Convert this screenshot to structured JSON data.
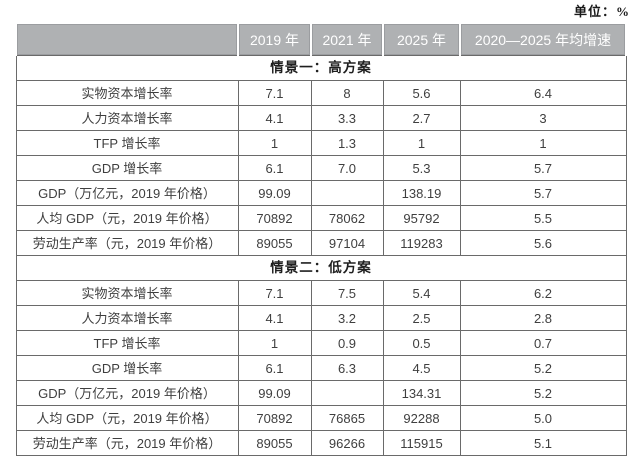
{
  "unit_note": "单位：%",
  "table": {
    "columns": [
      "",
      "2019 年",
      "2021 年",
      "2025 年",
      "2020—2025 年均增速"
    ],
    "sections": [
      {
        "title": "情景一：高方案",
        "rows": [
          {
            "label": "实物资本增长率",
            "values": [
              "7.1",
              "8",
              "5.6",
              "6.4"
            ]
          },
          {
            "label": "人力资本增长率",
            "values": [
              "4.1",
              "3.3",
              "2.7",
              "3"
            ]
          },
          {
            "label": "TFP 增长率",
            "values": [
              "1",
              "1.3",
              "1",
              "1"
            ]
          },
          {
            "label": "GDP 增长率",
            "values": [
              "6.1",
              "7.0",
              "5.3",
              "5.7"
            ]
          },
          {
            "label": "GDP（万亿元，2019 年价格）",
            "values": [
              "99.09",
              "",
              "138.19",
              "5.7"
            ]
          },
          {
            "label": "人均 GDP（元，2019 年价格）",
            "values": [
              "70892",
              "78062",
              "95792",
              "5.5"
            ]
          },
          {
            "label": "劳动生产率（元，2019 年价格）",
            "values": [
              "89055",
              "97104",
              "119283",
              "5.6"
            ]
          }
        ]
      },
      {
        "title": "情景二：低方案",
        "rows": [
          {
            "label": "实物资本增长率",
            "values": [
              "7.1",
              "7.5",
              "5.4",
              "6.2"
            ]
          },
          {
            "label": "人力资本增长率",
            "values": [
              "4.1",
              "3.2",
              "2.5",
              "2.8"
            ]
          },
          {
            "label": "TFP 增长率",
            "values": [
              "1",
              "0.9",
              "0.5",
              "0.7"
            ]
          },
          {
            "label": "GDP 增长率",
            "values": [
              "6.1",
              "6.3",
              "4.5",
              "5.2"
            ]
          },
          {
            "label": "GDP（万亿元，2019 年价格）",
            "values": [
              "99.09",
              "",
              "134.31",
              "5.2"
            ]
          },
          {
            "label": "人均 GDP（元，2019 年价格）",
            "values": [
              "70892",
              "76865",
              "92288",
              "5.0"
            ]
          },
          {
            "label": "劳动生产率（元，2019 年价格）",
            "values": [
              "89055",
              "96266",
              "115915",
              "5.1"
            ]
          }
        ]
      }
    ]
  },
  "colors": {
    "header_bg": "#afb1b3",
    "header_text": "#ffffff",
    "border": "#6a6a6a",
    "body_text": "#3f3f3f"
  }
}
